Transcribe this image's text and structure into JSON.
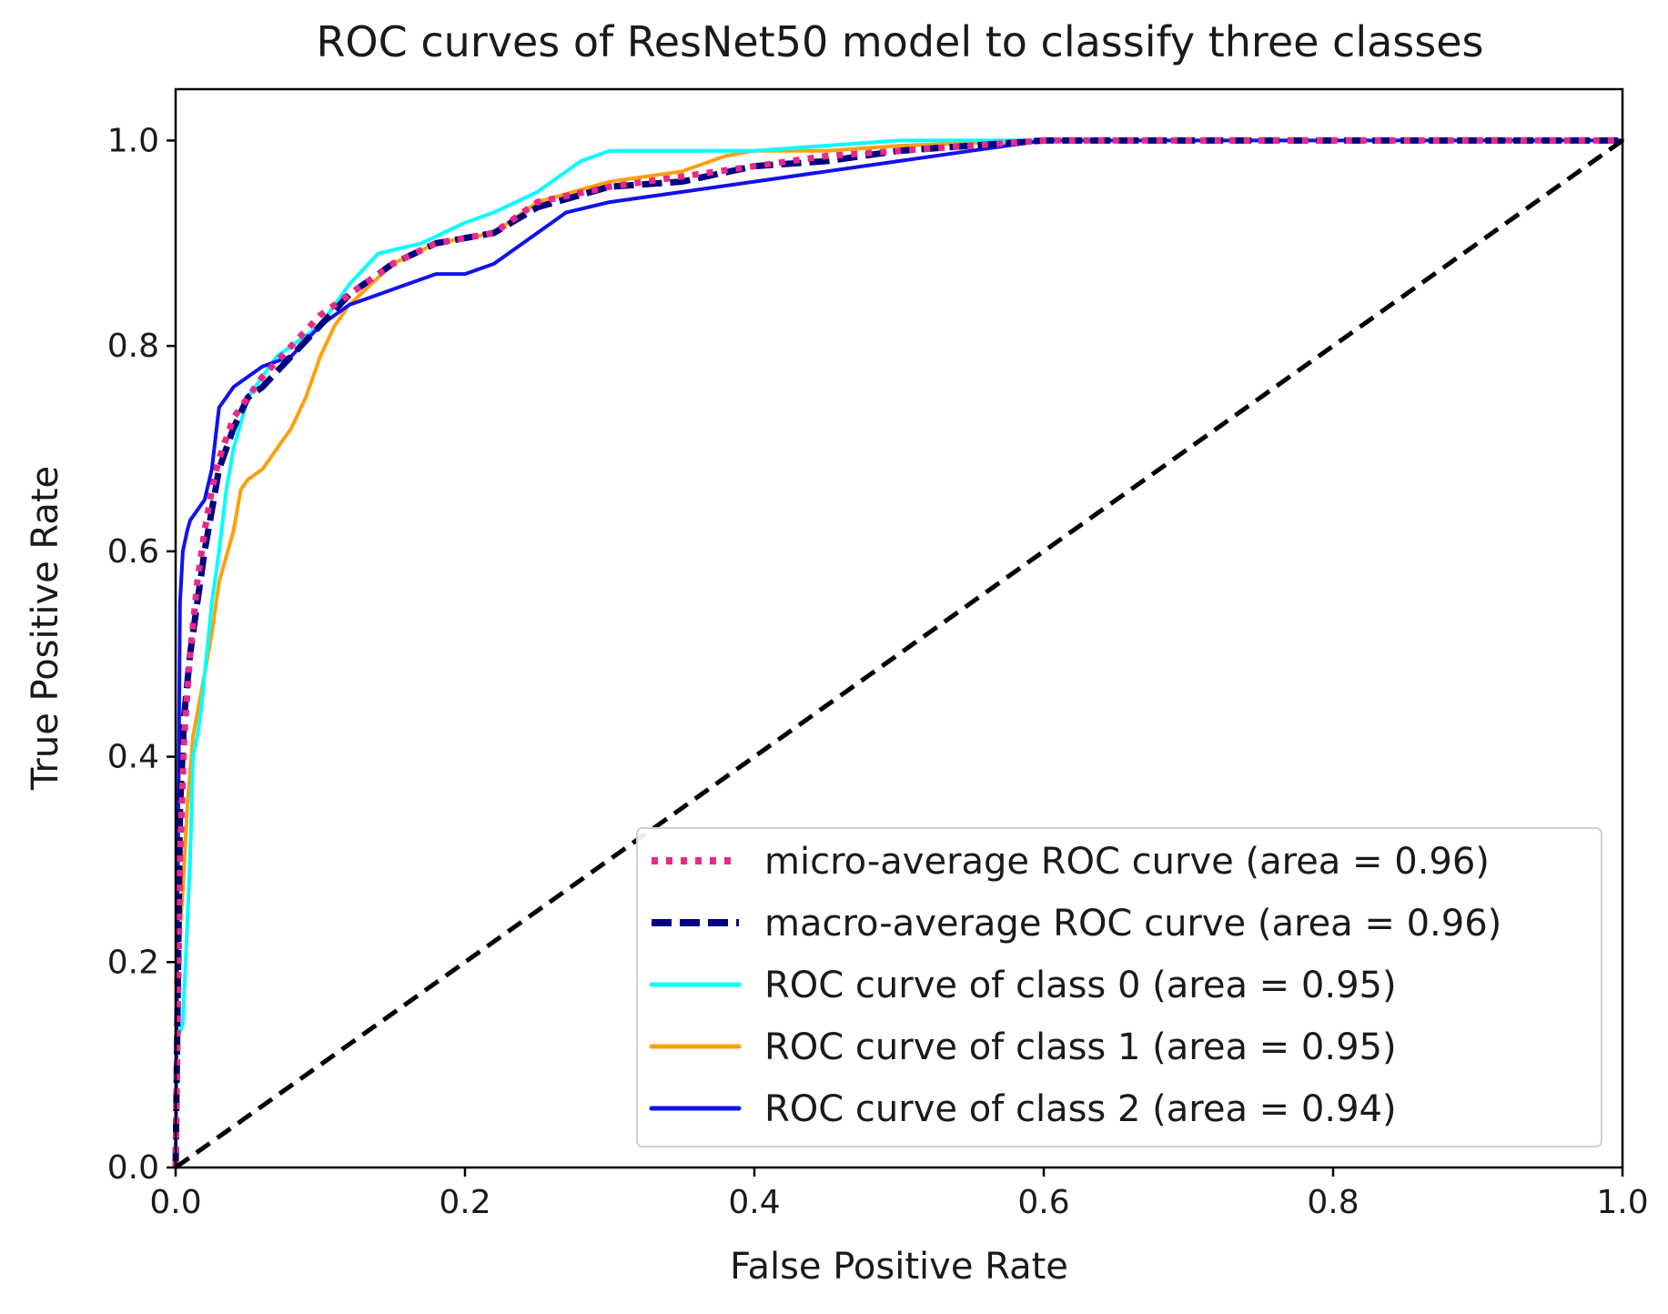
{
  "chart_data": {
    "type": "line",
    "title": "ROC curves of ResNet50 model to classify three classes",
    "xlabel": "False Positive Rate",
    "ylabel": "True Positive Rate",
    "xlim": [
      0.0,
      1.0
    ],
    "ylim": [
      0.0,
      1.05
    ],
    "xticks": [
      "0.0",
      "0.2",
      "0.4",
      "0.6",
      "0.8",
      "1.0"
    ],
    "yticks": [
      "0.0",
      "0.2",
      "0.4",
      "0.6",
      "0.8",
      "1.0"
    ],
    "grid": false,
    "legend_position": "lower-right",
    "series": [
      {
        "key": "micro",
        "name": "micro-average ROC curve (area = 0.96)",
        "color": "#e7298a",
        "style": "dotted",
        "x": [
          0.0,
          0.003,
          0.006,
          0.01,
          0.015,
          0.02,
          0.025,
          0.03,
          0.04,
          0.05,
          0.06,
          0.08,
          0.1,
          0.12,
          0.15,
          0.18,
          0.22,
          0.25,
          0.3,
          0.35,
          0.4,
          0.45,
          0.5,
          0.55,
          0.6,
          0.65,
          0.7,
          0.8,
          0.9,
          1.0
        ],
        "y": [
          0.0,
          0.3,
          0.42,
          0.5,
          0.57,
          0.62,
          0.66,
          0.69,
          0.73,
          0.75,
          0.77,
          0.8,
          0.83,
          0.85,
          0.88,
          0.9,
          0.91,
          0.94,
          0.955,
          0.965,
          0.975,
          0.985,
          0.99,
          0.995,
          1.0,
          1.0,
          1.0,
          1.0,
          1.0,
          1.0
        ]
      },
      {
        "key": "macro",
        "name": "macro-average ROC curve (area = 0.96)",
        "color": "#000080",
        "style": "dashed",
        "x": [
          0.0,
          0.003,
          0.006,
          0.01,
          0.015,
          0.02,
          0.025,
          0.03,
          0.04,
          0.05,
          0.06,
          0.08,
          0.1,
          0.12,
          0.15,
          0.18,
          0.22,
          0.25,
          0.3,
          0.35,
          0.4,
          0.45,
          0.5,
          0.55,
          0.6,
          0.65,
          0.7,
          0.8,
          0.9,
          1.0
        ],
        "y": [
          0.0,
          0.35,
          0.44,
          0.5,
          0.55,
          0.6,
          0.64,
          0.68,
          0.72,
          0.75,
          0.76,
          0.79,
          0.82,
          0.85,
          0.88,
          0.9,
          0.91,
          0.935,
          0.955,
          0.96,
          0.975,
          0.98,
          0.99,
          0.995,
          1.0,
          1.0,
          1.0,
          1.0,
          1.0,
          1.0
        ]
      },
      {
        "key": "class0",
        "name": "ROC curve of class 0 (area = 0.95)",
        "color": "#00ffff",
        "style": "solid",
        "x": [
          0.0,
          0.005,
          0.01,
          0.012,
          0.015,
          0.018,
          0.02,
          0.025,
          0.03,
          0.035,
          0.04,
          0.05,
          0.06,
          0.07,
          0.08,
          0.1,
          0.12,
          0.14,
          0.17,
          0.2,
          0.22,
          0.25,
          0.28,
          0.3,
          0.35,
          0.4,
          0.5,
          0.6,
          1.0
        ],
        "y": [
          0.12,
          0.14,
          0.3,
          0.4,
          0.42,
          0.45,
          0.48,
          0.55,
          0.6,
          0.66,
          0.7,
          0.75,
          0.77,
          0.79,
          0.8,
          0.82,
          0.86,
          0.89,
          0.9,
          0.92,
          0.93,
          0.95,
          0.98,
          0.99,
          0.99,
          0.99,
          1.0,
          1.0,
          1.0
        ]
      },
      {
        "key": "class1",
        "name": "ROC curve of class 1 (area = 0.95)",
        "color": "#ff9f0f",
        "style": "solid",
        "x": [
          0.0,
          0.005,
          0.008,
          0.012,
          0.02,
          0.025,
          0.03,
          0.04,
          0.045,
          0.05,
          0.06,
          0.07,
          0.08,
          0.09,
          0.1,
          0.11,
          0.12,
          0.15,
          0.18,
          0.2,
          0.22,
          0.25,
          0.3,
          0.35,
          0.38,
          0.4,
          0.45,
          0.5,
          0.6,
          1.0
        ],
        "y": [
          0.18,
          0.27,
          0.35,
          0.42,
          0.48,
          0.52,
          0.57,
          0.62,
          0.66,
          0.67,
          0.68,
          0.7,
          0.72,
          0.75,
          0.79,
          0.82,
          0.84,
          0.88,
          0.9,
          0.905,
          0.91,
          0.94,
          0.96,
          0.97,
          0.985,
          0.99,
          0.99,
          0.995,
          1.0,
          1.0
        ]
      },
      {
        "key": "class2",
        "name": "ROC curve of class 2 (area = 0.94)",
        "color": "#1111ee",
        "style": "solid",
        "x": [
          0.0,
          0.003,
          0.005,
          0.008,
          0.01,
          0.015,
          0.02,
          0.025,
          0.03,
          0.035,
          0.04,
          0.05,
          0.06,
          0.08,
          0.1,
          0.12,
          0.14,
          0.16,
          0.18,
          0.2,
          0.22,
          0.25,
          0.27,
          0.3,
          0.35,
          0.4,
          0.45,
          0.5,
          0.55,
          0.6,
          0.7,
          1.0
        ],
        "y": [
          0.0,
          0.55,
          0.6,
          0.62,
          0.63,
          0.64,
          0.65,
          0.68,
          0.74,
          0.75,
          0.76,
          0.77,
          0.78,
          0.79,
          0.82,
          0.84,
          0.85,
          0.86,
          0.87,
          0.87,
          0.88,
          0.91,
          0.93,
          0.94,
          0.95,
          0.96,
          0.97,
          0.98,
          0.99,
          1.0,
          1.0,
          1.0
        ]
      },
      {
        "key": "chance",
        "name": "",
        "color": "#000000",
        "style": "dashed",
        "x": [
          0.0,
          1.0
        ],
        "y": [
          0.0,
          1.0
        ]
      }
    ]
  }
}
